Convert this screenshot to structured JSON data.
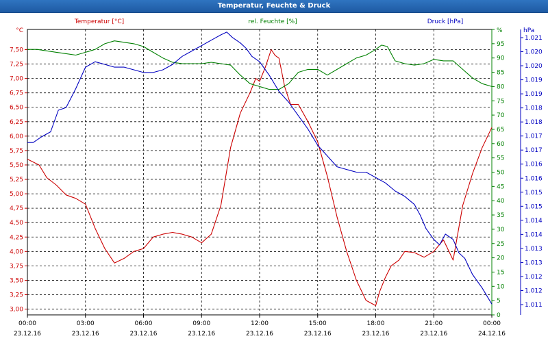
{
  "window": {
    "title": "Temperatur, Feuchte & Druck"
  },
  "chart_data": {
    "type": "line",
    "title": "Temperatur, Feuchte & Druck",
    "grid": true,
    "x_range": [
      "2016-12-23 00:00",
      "2016-12-24 00:00"
    ],
    "x_ticks": [
      {
        "time": "00:00",
        "date": "23.12.16"
      },
      {
        "time": "03:00",
        "date": "23.12.16"
      },
      {
        "time": "06:00",
        "date": "23.12.16"
      },
      {
        "time": "09:00",
        "date": "23.12.16"
      },
      {
        "time": "12:00",
        "date": "23.12.16"
      },
      {
        "time": "15:00",
        "date": "23.12.16"
      },
      {
        "time": "18:00",
        "date": "23.12.16"
      },
      {
        "time": "21:00",
        "date": "23.12.16"
      },
      {
        "time": "00:00",
        "date": "24.12.16"
      }
    ],
    "axes": {
      "temperature": {
        "unit": "°C",
        "ylim": [
          2.9,
          7.85
        ],
        "ticks": [
          "3,00",
          "3,25",
          "3,50",
          "3,75",
          "4,00",
          "4,25",
          "4,50",
          "4,75",
          "5,00",
          "5,25",
          "5,50",
          "5,75",
          "6,00",
          "6,25",
          "6,50",
          "6,75",
          "7,00",
          "7,25",
          "7,50"
        ]
      },
      "humidity": {
        "unit": "%",
        "ylim": [
          0,
          100
        ],
        "ticks": [
          "0",
          "5",
          "10",
          "15",
          "20",
          "25",
          "30",
          "35",
          "40",
          "45",
          "50",
          "55",
          "60",
          "65",
          "70",
          "75",
          "80",
          "85",
          "90",
          "95",
          "100"
        ]
      },
      "pressure": {
        "unit": "hPa",
        "ylim": [
          1010.8,
          1021.4
        ],
        "ticks": [
          "1.011",
          "1.012",
          "1.012",
          "1.013",
          "1.013",
          "1.014",
          "1.014",
          "1.015",
          "1.015",
          "1.016",
          "1.016",
          "1.017",
          "1.017",
          "1.018",
          "1.018",
          "1.019",
          "1.019",
          "1.020",
          "1.020",
          "1.021"
        ]
      }
    },
    "series": [
      {
        "name": "Temperatur [°C]",
        "axis": "temperature",
        "color": "#cc0000",
        "x_hours": [
          0,
          0.6,
          1,
          1.5,
          2,
          2.5,
          3,
          3.5,
          4,
          4.5,
          5,
          5.5,
          6,
          6.5,
          7,
          7.5,
          8,
          8.5,
          9,
          9.5,
          10,
          10.5,
          11,
          11.5,
          11.8,
          12,
          12.3,
          12.6,
          12.8,
          13,
          13.3,
          13.6,
          14,
          14.5,
          15,
          15.5,
          16,
          16.5,
          17,
          17.5,
          18,
          18.2,
          18.5,
          18.8,
          19.2,
          19.5,
          20,
          20.5,
          21,
          21.5,
          22,
          22.5,
          23,
          23.5,
          24
        ],
        "values": [
          5.6,
          5.5,
          5.28,
          5.15,
          4.98,
          4.92,
          4.82,
          4.4,
          4.05,
          3.8,
          3.88,
          4.0,
          4.05,
          4.25,
          4.3,
          4.33,
          4.3,
          4.25,
          4.15,
          4.3,
          4.8,
          5.8,
          6.4,
          6.75,
          7.0,
          6.95,
          7.2,
          7.5,
          7.4,
          7.35,
          6.85,
          6.55,
          6.55,
          6.25,
          5.9,
          5.3,
          4.6,
          4.0,
          3.5,
          3.15,
          3.06,
          3.3,
          3.55,
          3.75,
          3.85,
          4.0,
          3.98,
          3.9,
          4.0,
          4.2,
          3.85,
          4.8,
          5.35,
          5.8,
          6.15
        ]
      },
      {
        "name": "rel. Feuchte [%]",
        "axis": "humidity",
        "color": "#008000",
        "x_hours": [
          0,
          0.5,
          1,
          1.5,
          2,
          2.5,
          3,
          3.5,
          4,
          4.5,
          5,
          5.5,
          6,
          6.5,
          7,
          7.5,
          8,
          8.5,
          9,
          9.5,
          10,
          10.5,
          11,
          11.5,
          12,
          12.5,
          13,
          13.5,
          14,
          14.5,
          15,
          15.5,
          16,
          16.5,
          17,
          17.5,
          18,
          18.3,
          18.6,
          19,
          19.5,
          20,
          20.5,
          21,
          21.5,
          22,
          22.5,
          23,
          23.5,
          24
        ],
        "values": [
          93,
          93,
          92.5,
          92,
          91.5,
          91,
          92,
          93,
          95,
          96,
          95.5,
          95,
          94,
          92,
          90,
          88.5,
          88,
          88,
          88,
          88.5,
          88,
          87.5,
          84,
          81,
          80,
          79,
          79,
          81,
          85,
          86,
          86,
          84,
          86,
          88,
          90,
          91,
          93,
          94.5,
          94,
          89,
          88,
          87.5,
          88,
          89.5,
          89,
          89,
          86,
          83,
          81,
          80
        ]
      },
      {
        "name": "Druck [hPa]",
        "axis": "pressure",
        "color": "#0000c0",
        "x_hours": [
          0,
          0.3,
          0.7,
          1.2,
          1.6,
          2,
          2.5,
          3,
          3.5,
          4,
          4.5,
          5,
          5.5,
          6,
          6.5,
          7,
          7.5,
          8,
          8.5,
          9,
          9.5,
          10,
          10.3,
          10.6,
          11,
          11.3,
          11.6,
          12,
          12.5,
          13,
          13.5,
          14,
          14.5,
          15,
          15.5,
          16,
          16.5,
          17,
          17.5,
          18,
          18.5,
          19,
          19.5,
          20,
          20.3,
          20.6,
          21,
          21.3,
          21.6,
          22,
          22.3,
          22.6,
          23,
          23.5,
          24
        ],
        "values": [
          1017.2,
          1017.2,
          1017.4,
          1017.6,
          1018.4,
          1018.5,
          1019.2,
          1020.0,
          1020.2,
          1020.1,
          1020.0,
          1020.0,
          1019.9,
          1019.8,
          1019.8,
          1019.9,
          1020.1,
          1020.4,
          1020.6,
          1020.8,
          1021.0,
          1021.2,
          1021.3,
          1021.1,
          1020.9,
          1020.7,
          1020.4,
          1020.2,
          1019.7,
          1019.1,
          1018.7,
          1018.2,
          1017.7,
          1017.1,
          1016.7,
          1016.3,
          1016.2,
          1016.1,
          1016.1,
          1015.9,
          1015.7,
          1015.4,
          1015.2,
          1014.9,
          1014.5,
          1014.0,
          1013.6,
          1013.4,
          1013.8,
          1013.6,
          1013.1,
          1012.9,
          1012.3,
          1011.8,
          1011.2
        ]
      }
    ]
  }
}
